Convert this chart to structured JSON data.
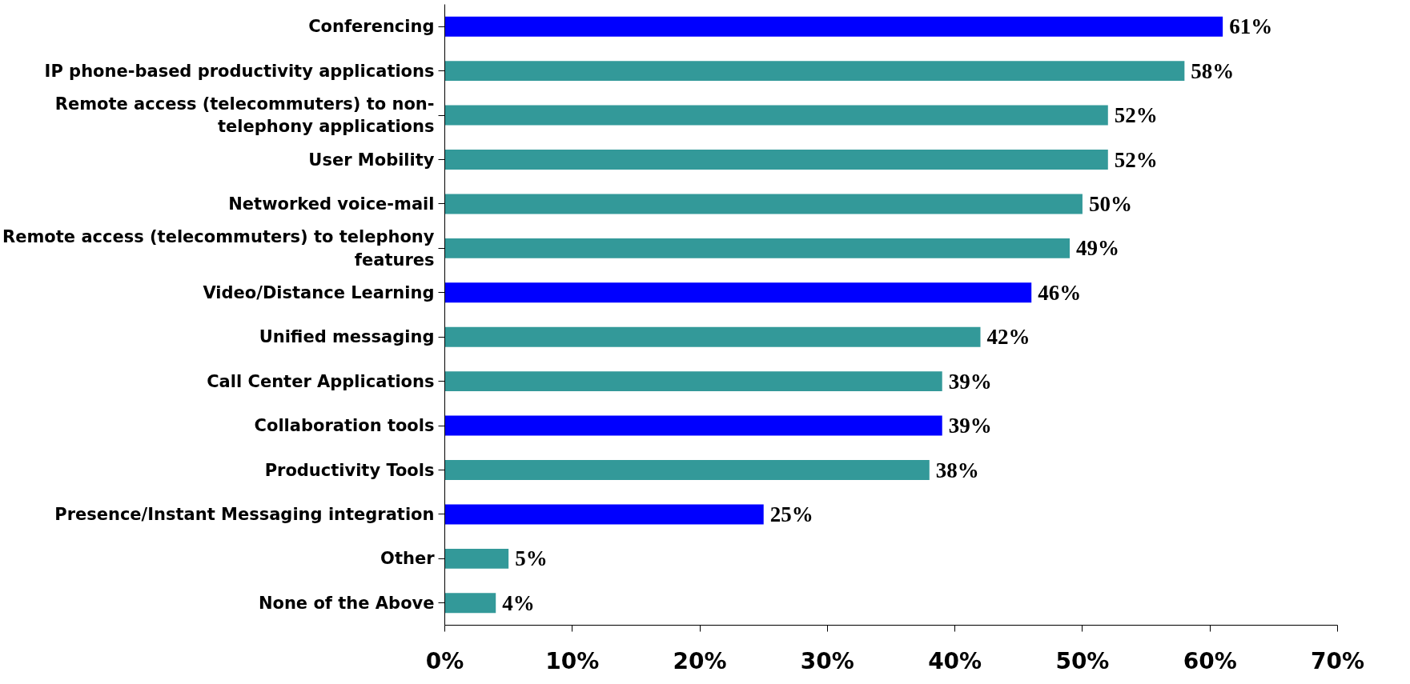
{
  "chart_data": {
    "type": "bar",
    "orientation": "horizontal",
    "categories": [
      "Conferencing",
      "IP phone-based productivity applications",
      "Remote access (telecommuters) to non-telephony applications",
      "User Mobility",
      "Networked voice-mail",
      "Remote access (telecommuters) to telephony features",
      "Video/Distance Learning",
      "Unified messaging",
      "Call Center Applications",
      "Collaboration tools",
      "Productivity Tools",
      "Presence/Instant Messaging integration",
      "Other",
      "None of the Above"
    ],
    "values": [
      61,
      58,
      52,
      52,
      50,
      49,
      46,
      42,
      39,
      39,
      38,
      25,
      5,
      4
    ],
    "value_labels": [
      "61%",
      "58%",
      "52%",
      "52%",
      "50%",
      "49%",
      "46%",
      "42%",
      "39%",
      "39%",
      "38%",
      "25%",
      "5%",
      "4%"
    ],
    "colors": [
      "#0000ff",
      "#339999",
      "#339999",
      "#339999",
      "#339999",
      "#339999",
      "#0000ff",
      "#339999",
      "#339999",
      "#0000ff",
      "#339999",
      "#0000ff",
      "#339999",
      "#339999"
    ],
    "xlim": [
      0,
      70
    ],
    "xticks": [
      {
        "value": 0,
        "label": "0%"
      },
      {
        "value": 10,
        "label": "10%"
      },
      {
        "value": 20,
        "label": "20%"
      },
      {
        "value": 30,
        "label": "30%"
      },
      {
        "value": 40,
        "label": "40%"
      },
      {
        "value": 50,
        "label": "50%"
      },
      {
        "value": 60,
        "label": "60%"
      },
      {
        "value": 70,
        "label": "70%"
      }
    ],
    "grid": false
  }
}
